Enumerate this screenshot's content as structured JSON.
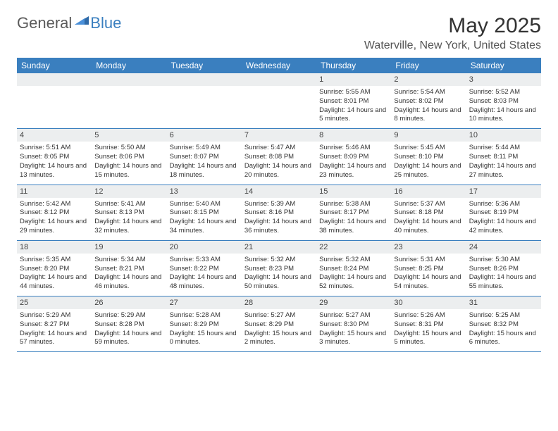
{
  "logo": {
    "text1": "General",
    "text2": "Blue"
  },
  "title": "May 2025",
  "location": "Waterville, New York, United States",
  "colors": {
    "header_bg": "#3a7fbf",
    "daynum_bg": "#eceeef",
    "border": "#3a7fbf",
    "text": "#333333",
    "logo_gray": "#5a5a5a",
    "logo_blue": "#3a7fbf"
  },
  "day_headers": [
    "Sunday",
    "Monday",
    "Tuesday",
    "Wednesday",
    "Thursday",
    "Friday",
    "Saturday"
  ],
  "weeks": [
    [
      {
        "n": "",
        "sr": "",
        "ss": "",
        "dl": ""
      },
      {
        "n": "",
        "sr": "",
        "ss": "",
        "dl": ""
      },
      {
        "n": "",
        "sr": "",
        "ss": "",
        "dl": ""
      },
      {
        "n": "",
        "sr": "",
        "ss": "",
        "dl": ""
      },
      {
        "n": "1",
        "sr": "Sunrise: 5:55 AM",
        "ss": "Sunset: 8:01 PM",
        "dl": "Daylight: 14 hours and 5 minutes."
      },
      {
        "n": "2",
        "sr": "Sunrise: 5:54 AM",
        "ss": "Sunset: 8:02 PM",
        "dl": "Daylight: 14 hours and 8 minutes."
      },
      {
        "n": "3",
        "sr": "Sunrise: 5:52 AM",
        "ss": "Sunset: 8:03 PM",
        "dl": "Daylight: 14 hours and 10 minutes."
      }
    ],
    [
      {
        "n": "4",
        "sr": "Sunrise: 5:51 AM",
        "ss": "Sunset: 8:05 PM",
        "dl": "Daylight: 14 hours and 13 minutes."
      },
      {
        "n": "5",
        "sr": "Sunrise: 5:50 AM",
        "ss": "Sunset: 8:06 PM",
        "dl": "Daylight: 14 hours and 15 minutes."
      },
      {
        "n": "6",
        "sr": "Sunrise: 5:49 AM",
        "ss": "Sunset: 8:07 PM",
        "dl": "Daylight: 14 hours and 18 minutes."
      },
      {
        "n": "7",
        "sr": "Sunrise: 5:47 AM",
        "ss": "Sunset: 8:08 PM",
        "dl": "Daylight: 14 hours and 20 minutes."
      },
      {
        "n": "8",
        "sr": "Sunrise: 5:46 AM",
        "ss": "Sunset: 8:09 PM",
        "dl": "Daylight: 14 hours and 23 minutes."
      },
      {
        "n": "9",
        "sr": "Sunrise: 5:45 AM",
        "ss": "Sunset: 8:10 PM",
        "dl": "Daylight: 14 hours and 25 minutes."
      },
      {
        "n": "10",
        "sr": "Sunrise: 5:44 AM",
        "ss": "Sunset: 8:11 PM",
        "dl": "Daylight: 14 hours and 27 minutes."
      }
    ],
    [
      {
        "n": "11",
        "sr": "Sunrise: 5:42 AM",
        "ss": "Sunset: 8:12 PM",
        "dl": "Daylight: 14 hours and 29 minutes."
      },
      {
        "n": "12",
        "sr": "Sunrise: 5:41 AM",
        "ss": "Sunset: 8:13 PM",
        "dl": "Daylight: 14 hours and 32 minutes."
      },
      {
        "n": "13",
        "sr": "Sunrise: 5:40 AM",
        "ss": "Sunset: 8:15 PM",
        "dl": "Daylight: 14 hours and 34 minutes."
      },
      {
        "n": "14",
        "sr": "Sunrise: 5:39 AM",
        "ss": "Sunset: 8:16 PM",
        "dl": "Daylight: 14 hours and 36 minutes."
      },
      {
        "n": "15",
        "sr": "Sunrise: 5:38 AM",
        "ss": "Sunset: 8:17 PM",
        "dl": "Daylight: 14 hours and 38 minutes."
      },
      {
        "n": "16",
        "sr": "Sunrise: 5:37 AM",
        "ss": "Sunset: 8:18 PM",
        "dl": "Daylight: 14 hours and 40 minutes."
      },
      {
        "n": "17",
        "sr": "Sunrise: 5:36 AM",
        "ss": "Sunset: 8:19 PM",
        "dl": "Daylight: 14 hours and 42 minutes."
      }
    ],
    [
      {
        "n": "18",
        "sr": "Sunrise: 5:35 AM",
        "ss": "Sunset: 8:20 PM",
        "dl": "Daylight: 14 hours and 44 minutes."
      },
      {
        "n": "19",
        "sr": "Sunrise: 5:34 AM",
        "ss": "Sunset: 8:21 PM",
        "dl": "Daylight: 14 hours and 46 minutes."
      },
      {
        "n": "20",
        "sr": "Sunrise: 5:33 AM",
        "ss": "Sunset: 8:22 PM",
        "dl": "Daylight: 14 hours and 48 minutes."
      },
      {
        "n": "21",
        "sr": "Sunrise: 5:32 AM",
        "ss": "Sunset: 8:23 PM",
        "dl": "Daylight: 14 hours and 50 minutes."
      },
      {
        "n": "22",
        "sr": "Sunrise: 5:32 AM",
        "ss": "Sunset: 8:24 PM",
        "dl": "Daylight: 14 hours and 52 minutes."
      },
      {
        "n": "23",
        "sr": "Sunrise: 5:31 AM",
        "ss": "Sunset: 8:25 PM",
        "dl": "Daylight: 14 hours and 54 minutes."
      },
      {
        "n": "24",
        "sr": "Sunrise: 5:30 AM",
        "ss": "Sunset: 8:26 PM",
        "dl": "Daylight: 14 hours and 55 minutes."
      }
    ],
    [
      {
        "n": "25",
        "sr": "Sunrise: 5:29 AM",
        "ss": "Sunset: 8:27 PM",
        "dl": "Daylight: 14 hours and 57 minutes."
      },
      {
        "n": "26",
        "sr": "Sunrise: 5:29 AM",
        "ss": "Sunset: 8:28 PM",
        "dl": "Daylight: 14 hours and 59 minutes."
      },
      {
        "n": "27",
        "sr": "Sunrise: 5:28 AM",
        "ss": "Sunset: 8:29 PM",
        "dl": "Daylight: 15 hours and 0 minutes."
      },
      {
        "n": "28",
        "sr": "Sunrise: 5:27 AM",
        "ss": "Sunset: 8:29 PM",
        "dl": "Daylight: 15 hours and 2 minutes."
      },
      {
        "n": "29",
        "sr": "Sunrise: 5:27 AM",
        "ss": "Sunset: 8:30 PM",
        "dl": "Daylight: 15 hours and 3 minutes."
      },
      {
        "n": "30",
        "sr": "Sunrise: 5:26 AM",
        "ss": "Sunset: 8:31 PM",
        "dl": "Daylight: 15 hours and 5 minutes."
      },
      {
        "n": "31",
        "sr": "Sunrise: 5:25 AM",
        "ss": "Sunset: 8:32 PM",
        "dl": "Daylight: 15 hours and 6 minutes."
      }
    ]
  ]
}
